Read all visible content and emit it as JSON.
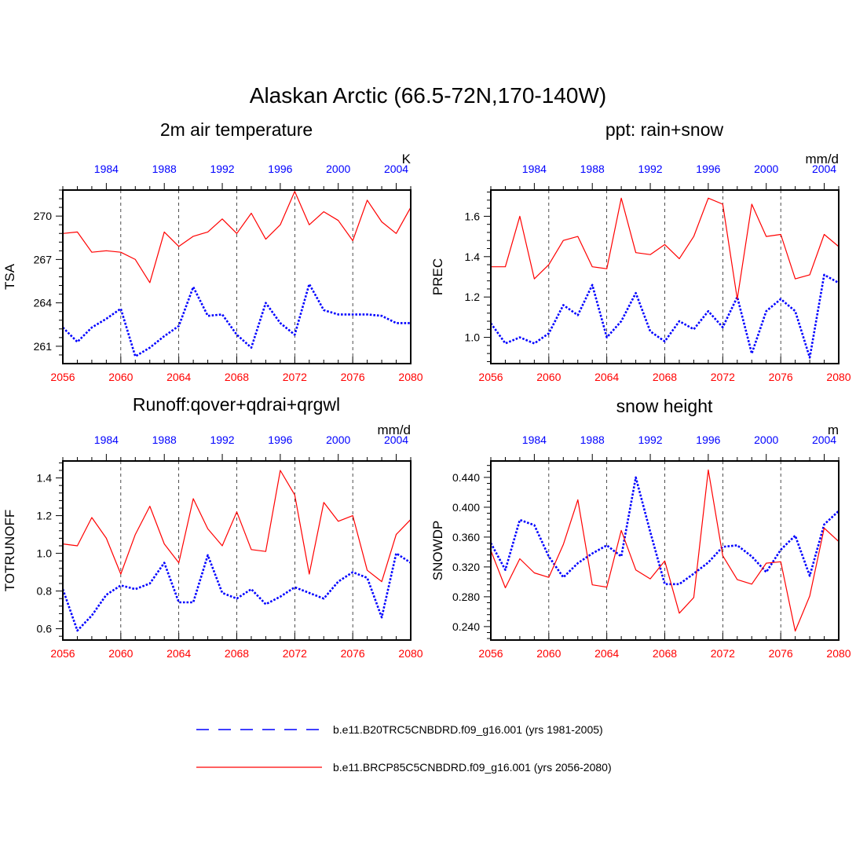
{
  "figure_title": "Alaskan Arctic (66.5-72N,170-140W)",
  "colors": {
    "future": "#ff0000",
    "historical": "#0000ff",
    "axis": "#000000"
  },
  "legend": {
    "historical_label": "b.e11.B20TRC5CNBDRD.f09_g16.001 (yrs 1981-2005)",
    "future_label": "b.e11.BRCP85C5CNBDRD.f09_g16.001 (yrs 2056-2080)"
  },
  "chart_data": [
    {
      "type": "line",
      "title": "2m air temperature",
      "ylabel": "TSA",
      "units": "K",
      "ylim": [
        259.8,
        271.8
      ],
      "yticks": [
        261,
        264,
        267,
        270
      ],
      "yticklabels": [
        "261",
        "264",
        "267",
        "270"
      ],
      "x_bottom": {
        "range": [
          2056,
          2080
        ],
        "ticks": [
          2056,
          2060,
          2064,
          2068,
          2072,
          2076,
          2080
        ],
        "labels": [
          "2056",
          "2060",
          "2064",
          "2068",
          "2072",
          "2076",
          "2080"
        ]
      },
      "x_top": {
        "range": [
          1981,
          2005
        ],
        "ticks": [
          1984,
          1988,
          1992,
          1996,
          2000,
          2004
        ],
        "labels": [
          "1984",
          "1988",
          "1992",
          "1996",
          "2000",
          "2004"
        ]
      },
      "series": [
        {
          "name": "historical",
          "style": "dotted",
          "x": [
            1981,
            1982,
            1983,
            1984,
            1985,
            1986,
            1987,
            1988,
            1989,
            1990,
            1991,
            1992,
            1993,
            1994,
            1995,
            1996,
            1997,
            1998,
            1999,
            2000,
            2001,
            2002,
            2003,
            2004,
            2005
          ],
          "values": [
            262.3,
            261.3,
            262.3,
            262.9,
            263.6,
            260.3,
            260.9,
            261.7,
            262.4,
            265.1,
            263.1,
            263.2,
            261.8,
            260.9,
            264.0,
            262.6,
            261.8,
            265.3,
            263.5,
            263.2,
            263.2,
            263.2,
            263.1,
            262.6,
            262.6
          ]
        },
        {
          "name": "future",
          "style": "solid",
          "x": [
            2056,
            2057,
            2058,
            2059,
            2060,
            2061,
            2062,
            2063,
            2064,
            2065,
            2066,
            2067,
            2068,
            2069,
            2070,
            2071,
            2072,
            2073,
            2074,
            2075,
            2076,
            2077,
            2078,
            2079,
            2080
          ],
          "values": [
            268.8,
            268.9,
            267.5,
            267.6,
            267.5,
            267.0,
            265.4,
            268.9,
            267.9,
            268.6,
            268.9,
            269.8,
            268.8,
            270.2,
            268.4,
            269.4,
            271.7,
            269.4,
            270.3,
            269.7,
            268.3,
            271.1,
            269.6,
            268.8,
            270.6
          ]
        }
      ]
    },
    {
      "type": "line",
      "title": "ppt: rain+snow",
      "ylabel": "PREC",
      "units": "mm/d",
      "ylim": [
        0.87,
        1.73
      ],
      "yticks": [
        1.0,
        1.2,
        1.4,
        1.6
      ],
      "yticklabels": [
        "1.0",
        "1.2",
        "1.4",
        "1.6"
      ],
      "x_bottom": {
        "range": [
          2056,
          2080
        ],
        "ticks": [
          2056,
          2060,
          2064,
          2068,
          2072,
          2076,
          2080
        ],
        "labels": [
          "2056",
          "2060",
          "2064",
          "2068",
          "2072",
          "2076",
          "2080"
        ]
      },
      "x_top": {
        "range": [
          1981,
          2005
        ],
        "ticks": [
          1984,
          1988,
          1992,
          1996,
          2000,
          2004
        ],
        "labels": [
          "1984",
          "1988",
          "1992",
          "1996",
          "2000",
          "2004"
        ]
      },
      "series": [
        {
          "name": "historical",
          "style": "dotted",
          "x": [
            1981,
            1982,
            1983,
            1984,
            1985,
            1986,
            1987,
            1988,
            1989,
            1990,
            1991,
            1992,
            1993,
            1994,
            1995,
            1996,
            1997,
            1998,
            1999,
            2000,
            2001,
            2002,
            2003,
            2004,
            2005
          ],
          "values": [
            1.07,
            0.97,
            1.0,
            0.97,
            1.02,
            1.16,
            1.11,
            1.26,
            1.0,
            1.08,
            1.22,
            1.03,
            0.98,
            1.08,
            1.04,
            1.13,
            1.05,
            1.2,
            0.92,
            1.13,
            1.19,
            1.13,
            0.9,
            1.31,
            1.27
          ]
        },
        {
          "name": "future",
          "style": "solid",
          "x": [
            2056,
            2057,
            2058,
            2059,
            2060,
            2061,
            2062,
            2063,
            2064,
            2065,
            2066,
            2067,
            2068,
            2069,
            2070,
            2071,
            2072,
            2073,
            2074,
            2075,
            2076,
            2077,
            2078,
            2079,
            2080
          ],
          "values": [
            1.35,
            1.35,
            1.6,
            1.29,
            1.36,
            1.48,
            1.5,
            1.35,
            1.34,
            1.69,
            1.42,
            1.41,
            1.46,
            1.39,
            1.5,
            1.69,
            1.66,
            1.19,
            1.66,
            1.5,
            1.51,
            1.29,
            1.31,
            1.51,
            1.45
          ]
        }
      ]
    },
    {
      "type": "line",
      "title": "Runoff:qover+qdrai+qrgwl",
      "ylabel": "TOTRUNOFF",
      "units": "mm/d",
      "ylim": [
        0.54,
        1.49
      ],
      "yticks": [
        0.6,
        0.8,
        1.0,
        1.2,
        1.4
      ],
      "yticklabels": [
        "0.6",
        "0.8",
        "1.0",
        "1.2",
        "1.4"
      ],
      "x_bottom": {
        "range": [
          2056,
          2080
        ],
        "ticks": [
          2056,
          2060,
          2064,
          2068,
          2072,
          2076,
          2080
        ],
        "labels": [
          "2056",
          "2060",
          "2064",
          "2068",
          "2072",
          "2076",
          "2080"
        ]
      },
      "x_top": {
        "range": [
          1981,
          2005
        ],
        "ticks": [
          1984,
          1988,
          1992,
          1996,
          2000,
          2004
        ],
        "labels": [
          "1984",
          "1988",
          "1992",
          "1996",
          "2000",
          "2004"
        ]
      },
      "series": [
        {
          "name": "historical",
          "style": "dotted",
          "x": [
            1981,
            1982,
            1983,
            1984,
            1985,
            1986,
            1987,
            1988,
            1989,
            1990,
            1991,
            1992,
            1993,
            1994,
            1995,
            1996,
            1997,
            1998,
            1999,
            2000,
            2001,
            2002,
            2003,
            2004,
            2005
          ],
          "values": [
            0.81,
            0.59,
            0.67,
            0.78,
            0.83,
            0.81,
            0.84,
            0.95,
            0.74,
            0.74,
            0.99,
            0.79,
            0.76,
            0.81,
            0.73,
            0.77,
            0.82,
            0.79,
            0.76,
            0.85,
            0.9,
            0.87,
            0.66,
            1.0,
            0.95
          ]
        },
        {
          "name": "future",
          "style": "solid",
          "x": [
            2056,
            2057,
            2058,
            2059,
            2060,
            2061,
            2062,
            2063,
            2064,
            2065,
            2066,
            2067,
            2068,
            2069,
            2070,
            2071,
            2072,
            2073,
            2074,
            2075,
            2076,
            2077,
            2078,
            2079,
            2080
          ],
          "values": [
            1.05,
            1.04,
            1.19,
            1.08,
            0.89,
            1.1,
            1.25,
            1.05,
            0.95,
            1.29,
            1.13,
            1.04,
            1.22,
            1.02,
            1.01,
            1.44,
            1.31,
            0.89,
            1.27,
            1.17,
            1.2,
            0.91,
            0.85,
            1.1,
            1.18
          ]
        }
      ]
    },
    {
      "type": "line",
      "title": "snow height",
      "ylabel": "SNOWDP",
      "units": "m",
      "ylim": [
        0.222,
        0.462
      ],
      "yticks": [
        0.24,
        0.28,
        0.32,
        0.36,
        0.4,
        0.44
      ],
      "yticklabels": [
        "0.240",
        "0.280",
        "0.320",
        "0.360",
        "0.400",
        "0.440"
      ],
      "x_bottom": {
        "range": [
          2056,
          2080
        ],
        "ticks": [
          2056,
          2060,
          2064,
          2068,
          2072,
          2076,
          2080
        ],
        "labels": [
          "2056",
          "2060",
          "2064",
          "2068",
          "2072",
          "2076",
          "2080"
        ]
      },
      "x_top": {
        "range": [
          1981,
          2005
        ],
        "ticks": [
          1984,
          1988,
          1992,
          1996,
          2000,
          2004
        ],
        "labels": [
          "1984",
          "1988",
          "1992",
          "1996",
          "2000",
          "2004"
        ]
      },
      "series": [
        {
          "name": "historical",
          "style": "dotted",
          "x": [
            1981,
            1982,
            1983,
            1984,
            1985,
            1986,
            1987,
            1988,
            1989,
            1990,
            1991,
            1992,
            1993,
            1994,
            1995,
            1996,
            1997,
            1998,
            1999,
            2000,
            2001,
            2002,
            2003,
            2004,
            2005
          ],
          "values": [
            0.352,
            0.316,
            0.383,
            0.376,
            0.334,
            0.306,
            0.325,
            0.338,
            0.349,
            0.334,
            0.44,
            0.367,
            0.297,
            0.297,
            0.311,
            0.326,
            0.347,
            0.349,
            0.334,
            0.313,
            0.343,
            0.362,
            0.308,
            0.377,
            0.395
          ]
        },
        {
          "name": "future",
          "style": "solid",
          "x": [
            2056,
            2057,
            2058,
            2059,
            2060,
            2061,
            2062,
            2063,
            2064,
            2065,
            2066,
            2067,
            2068,
            2069,
            2070,
            2071,
            2072,
            2073,
            2074,
            2075,
            2076,
            2077,
            2078,
            2079,
            2080
          ],
          "values": [
            0.342,
            0.292,
            0.331,
            0.312,
            0.306,
            0.35,
            0.41,
            0.296,
            0.293,
            0.369,
            0.316,
            0.304,
            0.328,
            0.258,
            0.279,
            0.45,
            0.335,
            0.303,
            0.297,
            0.325,
            0.327,
            0.234,
            0.281,
            0.372,
            0.354
          ]
        }
      ]
    }
  ]
}
